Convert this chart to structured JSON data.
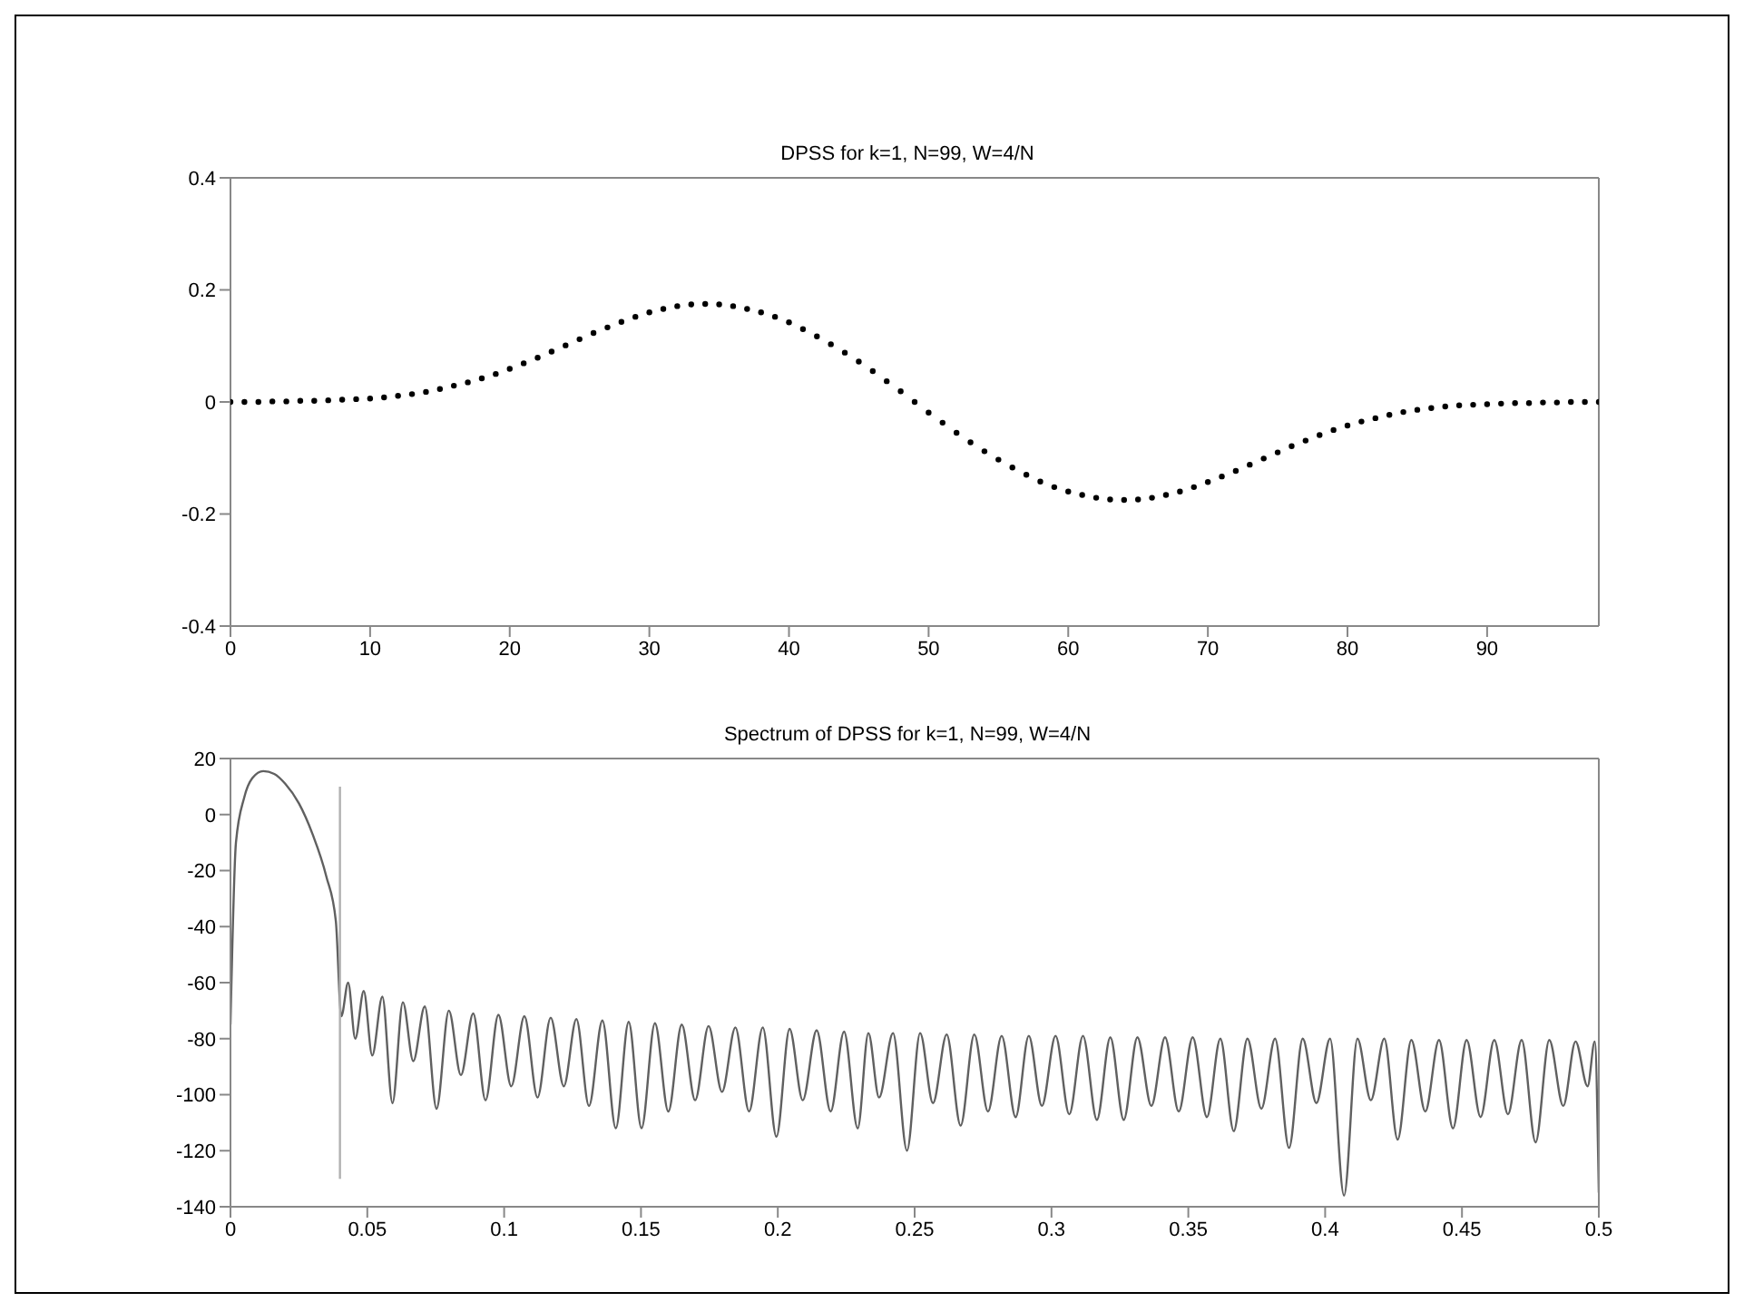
{
  "chart_data": [
    {
      "type": "scatter",
      "title": "DPSS for k=1, N=99, W=4/N",
      "marker": "circle",
      "xlim": [
        0,
        98
      ],
      "xticks": [
        0,
        10,
        20,
        30,
        40,
        50,
        60,
        70,
        80,
        90
      ],
      "ylim": [
        -0.4,
        0.4
      ],
      "yticks": [
        -0.4,
        -0.2,
        0,
        0.2,
        0.4
      ],
      "series": [
        {
          "color": "#000000",
          "x": [
            0,
            1,
            2,
            3,
            4,
            5,
            6,
            7,
            8,
            9,
            10,
            11,
            12,
            13,
            14,
            15,
            16,
            17,
            18,
            19,
            20,
            21,
            22,
            23,
            24,
            25,
            26,
            27,
            28,
            29,
            30,
            31,
            32,
            33,
            34,
            35,
            36,
            37,
            38,
            39,
            40,
            41,
            42,
            43,
            44,
            45,
            46,
            47,
            48,
            49,
            50,
            51,
            52,
            53,
            54,
            55,
            56,
            57,
            58,
            59,
            60,
            61,
            62,
            63,
            64,
            65,
            66,
            67,
            68,
            69,
            70,
            71,
            72,
            73,
            74,
            75,
            76,
            77,
            78,
            79,
            80,
            81,
            82,
            83,
            84,
            85,
            86,
            87,
            88,
            89,
            90,
            91,
            92,
            93,
            94,
            95,
            96,
            97,
            98
          ],
          "values": [
            0,
            0,
            0,
            0.001,
            0.001,
            0.002,
            0.002,
            0.003,
            0.004,
            0.005,
            0.006,
            0.008,
            0.011,
            0.014,
            0.018,
            0.023,
            0.029,
            0.035,
            0.042,
            0.05,
            0.059,
            0.069,
            0.079,
            0.09,
            0.101,
            0.112,
            0.123,
            0.133,
            0.143,
            0.152,
            0.16,
            0.166,
            0.171,
            0.174,
            0.175,
            0.174,
            0.171,
            0.166,
            0.16,
            0.152,
            0.142,
            0.13,
            0.117,
            0.103,
            0.088,
            0.072,
            0.055,
            0.037,
            0.019,
            0,
            -0.019,
            -0.037,
            -0.055,
            -0.072,
            -0.088,
            -0.103,
            -0.117,
            -0.13,
            -0.142,
            -0.152,
            -0.16,
            -0.166,
            -0.171,
            -0.174,
            -0.175,
            -0.174,
            -0.171,
            -0.166,
            -0.16,
            -0.152,
            -0.143,
            -0.133,
            -0.123,
            -0.112,
            -0.101,
            -0.09,
            -0.079,
            -0.069,
            -0.059,
            -0.05,
            -0.042,
            -0.035,
            -0.029,
            -0.023,
            -0.018,
            -0.014,
            -0.011,
            -0.008,
            -0.006,
            -0.005,
            -0.004,
            -0.003,
            -0.002,
            -0.002,
            -0.001,
            -0.001,
            0,
            0,
            0
          ]
        }
      ]
    },
    {
      "type": "line",
      "title": "Spectrum of DPSS for k=1, N=99, W=4/N",
      "xlim": [
        0,
        0.5
      ],
      "xticks": [
        0,
        0.05,
        0.1,
        0.15,
        0.2,
        0.25,
        0.3,
        0.35,
        0.4,
        0.45,
        0.5
      ],
      "ylim": [
        -140,
        20
      ],
      "yticks": [
        -140,
        -120,
        -100,
        -80,
        -60,
        -40,
        -20,
        0,
        20
      ],
      "series": [
        {
          "color": "#606060",
          "x": [
            0,
            0.002,
            0.005,
            0.008,
            0.012,
            0.016,
            0.02,
            0.025,
            0.03,
            0.035,
            0.0385,
            0.0405,
            0.043,
            0.0456,
            0.0487,
            0.0518,
            0.0555,
            0.0592,
            0.063,
            0.0668,
            0.071,
            0.0753,
            0.0798,
            0.0842,
            0.0887,
            0.0932,
            0.0979,
            0.1026,
            0.1074,
            0.1122,
            0.117,
            0.1218,
            0.1264,
            0.131,
            0.1359,
            0.1408,
            0.1455,
            0.1502,
            0.1551,
            0.16,
            0.1649,
            0.1698,
            0.1747,
            0.1796,
            0.1845,
            0.1895,
            0.1945,
            0.1995,
            0.2043,
            0.2091,
            0.2142,
            0.2193,
            0.2242,
            0.2292,
            0.2331,
            0.237,
            0.2421,
            0.2472,
            0.252,
            0.2567,
            0.2617,
            0.2668,
            0.2718,
            0.2768,
            0.2818,
            0.2869,
            0.2917,
            0.2965,
            0.3015,
            0.3065,
            0.3115,
            0.3166,
            0.3215,
            0.3264,
            0.3314,
            0.3365,
            0.3415,
            0.3465,
            0.3516,
            0.3568,
            0.3617,
            0.3666,
            0.3716,
            0.3767,
            0.3817,
            0.3868,
            0.3918,
            0.3968,
            0.4018,
            0.4069,
            0.4118,
            0.4167,
            0.4216,
            0.4265,
            0.4315,
            0.4366,
            0.4416,
            0.4467,
            0.4517,
            0.4568,
            0.4618,
            0.4668,
            0.4718,
            0.4769,
            0.4819,
            0.487,
            0.4915,
            0.4959,
            0.4985,
            0.5
          ],
          "values": [
            -75,
            -10,
            6,
            13,
            15.5,
            14.5,
            11,
            4,
            -7,
            -22,
            -38,
            -72,
            -60,
            -80,
            -63,
            -86,
            -65,
            -103,
            -67,
            -88,
            -68.5,
            -105,
            -70,
            -93,
            -71,
            -102,
            -71.5,
            -97,
            -72,
            -101,
            -72.5,
            -97,
            -73,
            -104,
            -73.5,
            -112,
            -74,
            -112,
            -74.5,
            -106,
            -75,
            -102,
            -75.5,
            -99,
            -76,
            -106,
            -76,
            -115,
            -76.5,
            -102,
            -77,
            -106,
            -77.5,
            -112,
            -78,
            -101,
            -78,
            -120,
            -78,
            -103,
            -78.5,
            -111,
            -78.5,
            -106,
            -79,
            -108,
            -79,
            -104,
            -79,
            -107,
            -79,
            -109,
            -79.5,
            -109,
            -79.5,
            -104,
            -79.5,
            -106,
            -79.5,
            -108,
            -80,
            -113,
            -80,
            -105,
            -80,
            -119,
            -80,
            -103,
            -80,
            -136,
            -80,
            -102,
            -80,
            -116,
            -80.5,
            -106,
            -80.5,
            -112,
            -80.5,
            -108,
            -80.5,
            -107,
            -80.5,
            -117,
            -80.5,
            -104,
            -81,
            -97,
            -81,
            -135
          ]
        },
        {
          "color": "#b0b0b0",
          "x": [
            0.04,
            0.04
          ],
          "values": [
            -130,
            10
          ]
        }
      ]
    }
  ]
}
